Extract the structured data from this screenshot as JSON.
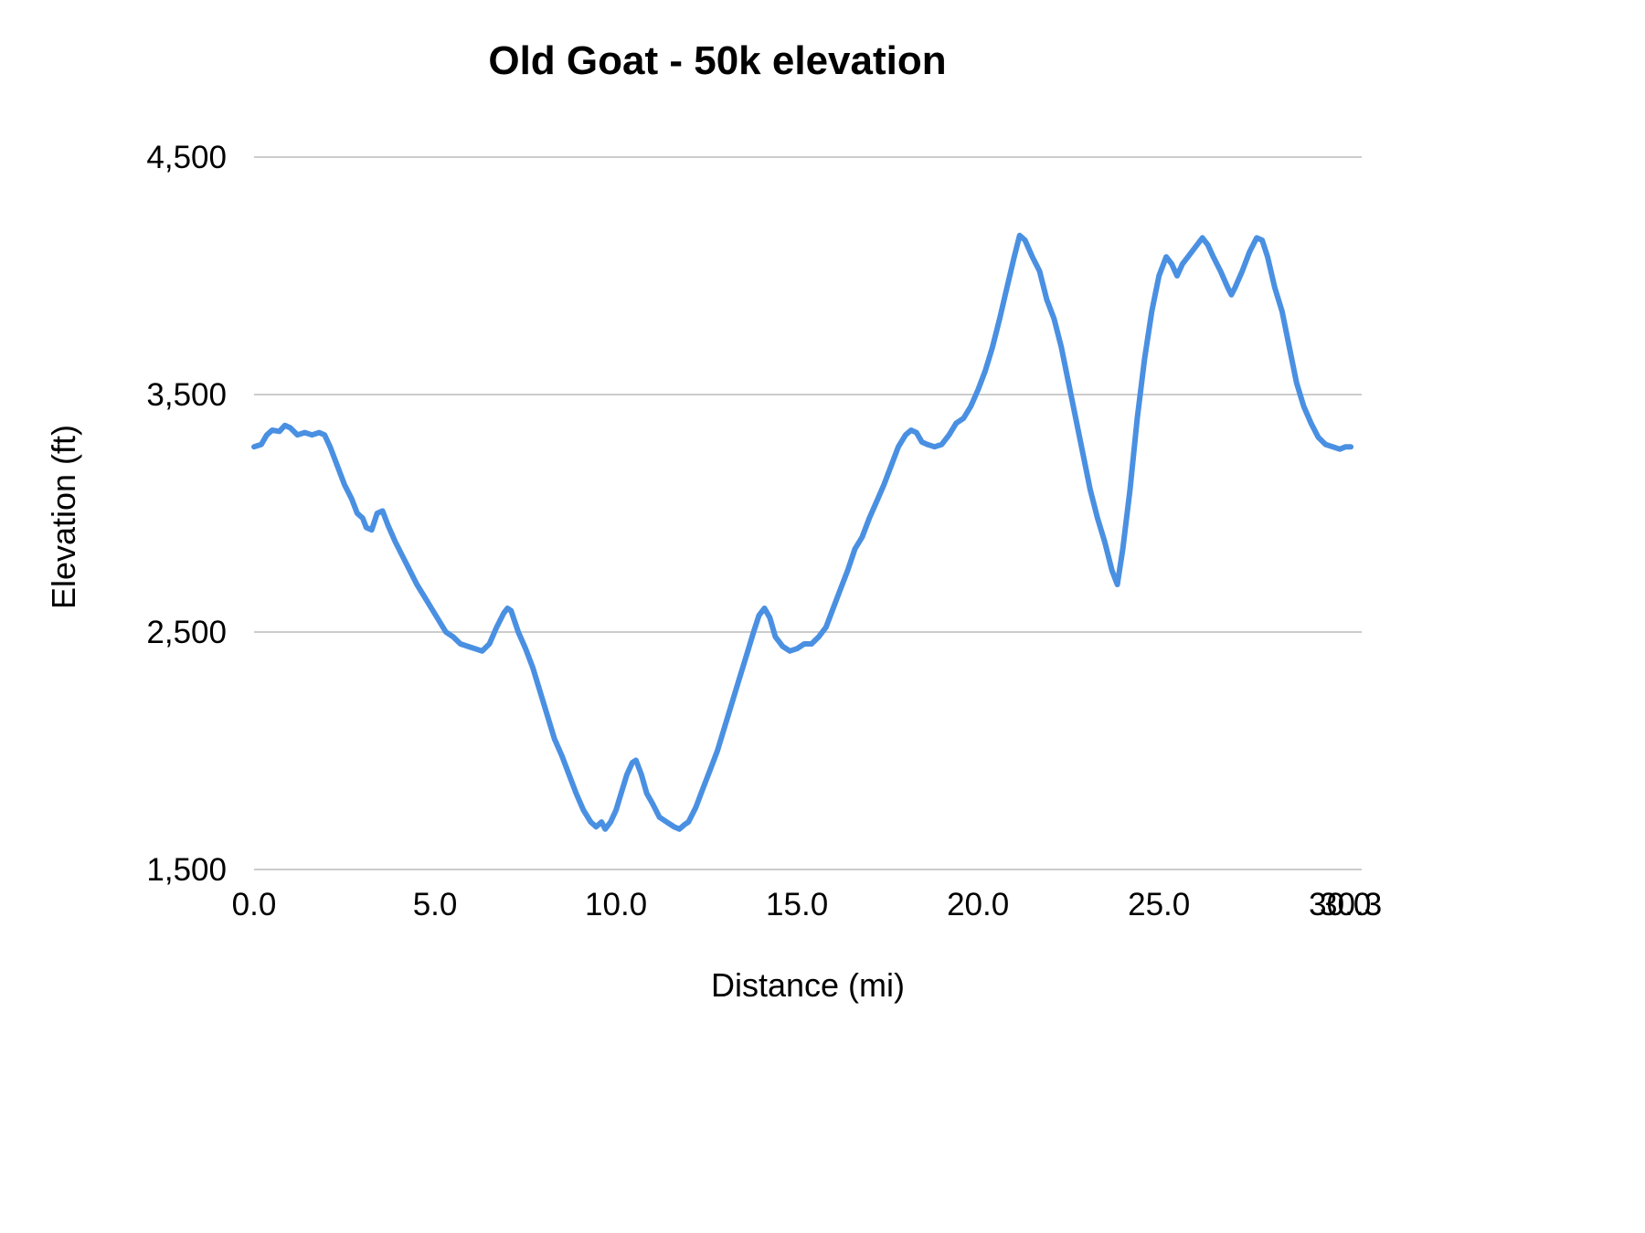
{
  "title": "Old Goat - 50k elevation",
  "chart_data": {
    "type": "line",
    "title": "Old Goat - 50k elevation",
    "xlabel": "Distance (mi)",
    "ylabel": "Elevation (ft)",
    "xlim": [
      0,
      30.6
    ],
    "ylim": [
      1500,
      4500
    ],
    "grid": "horizontal-only",
    "legend": "none",
    "line_color": "#4a90e2",
    "grid_color": "#cccccc",
    "x_ticks": [
      {
        "v": 0,
        "label": "0.0"
      },
      {
        "v": 5,
        "label": "5.0"
      },
      {
        "v": 10,
        "label": "10.0"
      },
      {
        "v": 15,
        "label": "15.0"
      },
      {
        "v": 20,
        "label": "20.0"
      },
      {
        "v": 25,
        "label": "25.0"
      },
      {
        "v": 30,
        "label": "30.0"
      },
      {
        "v": 30.3,
        "label": "30.3"
      }
    ],
    "y_ticks": [
      {
        "v": 1500,
        "label": "1,500"
      },
      {
        "v": 2500,
        "label": "2,500"
      },
      {
        "v": 3500,
        "label": "3,500"
      },
      {
        "v": 4500,
        "label": "4,500"
      }
    ],
    "series": [
      {
        "name": "elevation",
        "points": [
          [
            0.0,
            3280
          ],
          [
            0.2,
            3290
          ],
          [
            0.35,
            3330
          ],
          [
            0.5,
            3350
          ],
          [
            0.7,
            3345
          ],
          [
            0.85,
            3370
          ],
          [
            1.0,
            3360
          ],
          [
            1.2,
            3330
          ],
          [
            1.4,
            3340
          ],
          [
            1.6,
            3330
          ],
          [
            1.8,
            3340
          ],
          [
            1.95,
            3330
          ],
          [
            2.1,
            3280
          ],
          [
            2.3,
            3200
          ],
          [
            2.5,
            3120
          ],
          [
            2.7,
            3060
          ],
          [
            2.85,
            3000
          ],
          [
            3.0,
            2980
          ],
          [
            3.1,
            2940
          ],
          [
            3.25,
            2930
          ],
          [
            3.4,
            3000
          ],
          [
            3.55,
            3010
          ],
          [
            3.7,
            2950
          ],
          [
            3.9,
            2880
          ],
          [
            4.1,
            2820
          ],
          [
            4.3,
            2760
          ],
          [
            4.5,
            2700
          ],
          [
            4.7,
            2650
          ],
          [
            4.9,
            2600
          ],
          [
            5.1,
            2550
          ],
          [
            5.3,
            2500
          ],
          [
            5.5,
            2480
          ],
          [
            5.7,
            2450
          ],
          [
            5.9,
            2440
          ],
          [
            6.1,
            2430
          ],
          [
            6.3,
            2420
          ],
          [
            6.5,
            2450
          ],
          [
            6.7,
            2520
          ],
          [
            6.9,
            2580
          ],
          [
            7.0,
            2600
          ],
          [
            7.1,
            2590
          ],
          [
            7.3,
            2500
          ],
          [
            7.5,
            2430
          ],
          [
            7.7,
            2350
          ],
          [
            7.9,
            2250
          ],
          [
            8.1,
            2150
          ],
          [
            8.3,
            2050
          ],
          [
            8.5,
            1980
          ],
          [
            8.7,
            1900
          ],
          [
            8.9,
            1820
          ],
          [
            9.1,
            1750
          ],
          [
            9.3,
            1700
          ],
          [
            9.45,
            1680
          ],
          [
            9.6,
            1700
          ],
          [
            9.7,
            1670
          ],
          [
            9.85,
            1700
          ],
          [
            10.0,
            1750
          ],
          [
            10.1,
            1800
          ],
          [
            10.3,
            1900
          ],
          [
            10.45,
            1950
          ],
          [
            10.55,
            1960
          ],
          [
            10.7,
            1900
          ],
          [
            10.85,
            1820
          ],
          [
            11.0,
            1780
          ],
          [
            11.2,
            1720
          ],
          [
            11.4,
            1700
          ],
          [
            11.6,
            1680
          ],
          [
            11.75,
            1670
          ],
          [
            11.9,
            1690
          ],
          [
            12.0,
            1700
          ],
          [
            12.2,
            1760
          ],
          [
            12.4,
            1840
          ],
          [
            12.6,
            1920
          ],
          [
            12.8,
            2000
          ],
          [
            13.0,
            2100
          ],
          [
            13.2,
            2200
          ],
          [
            13.4,
            2300
          ],
          [
            13.6,
            2400
          ],
          [
            13.8,
            2500
          ],
          [
            13.95,
            2570
          ],
          [
            14.1,
            2600
          ],
          [
            14.25,
            2560
          ],
          [
            14.4,
            2480
          ],
          [
            14.6,
            2440
          ],
          [
            14.8,
            2420
          ],
          [
            15.0,
            2430
          ],
          [
            15.2,
            2450
          ],
          [
            15.4,
            2450
          ],
          [
            15.6,
            2480
          ],
          [
            15.8,
            2520
          ],
          [
            16.0,
            2600
          ],
          [
            16.2,
            2680
          ],
          [
            16.4,
            2760
          ],
          [
            16.6,
            2850
          ],
          [
            16.8,
            2900
          ],
          [
            17.0,
            2980
          ],
          [
            17.2,
            3050
          ],
          [
            17.4,
            3120
          ],
          [
            17.6,
            3200
          ],
          [
            17.8,
            3280
          ],
          [
            18.0,
            3330
          ],
          [
            18.15,
            3350
          ],
          [
            18.3,
            3340
          ],
          [
            18.45,
            3300
          ],
          [
            18.6,
            3290
          ],
          [
            18.8,
            3280
          ],
          [
            19.0,
            3290
          ],
          [
            19.2,
            3330
          ],
          [
            19.4,
            3380
          ],
          [
            19.6,
            3400
          ],
          [
            19.8,
            3450
          ],
          [
            20.0,
            3520
          ],
          [
            20.2,
            3600
          ],
          [
            20.4,
            3700
          ],
          [
            20.6,
            3820
          ],
          [
            20.8,
            3950
          ],
          [
            21.0,
            4080
          ],
          [
            21.15,
            4170
          ],
          [
            21.3,
            4150
          ],
          [
            21.5,
            4080
          ],
          [
            21.7,
            4020
          ],
          [
            21.9,
            3900
          ],
          [
            22.1,
            3820
          ],
          [
            22.3,
            3700
          ],
          [
            22.5,
            3550
          ],
          [
            22.7,
            3400
          ],
          [
            22.9,
            3250
          ],
          [
            23.1,
            3100
          ],
          [
            23.3,
            2980
          ],
          [
            23.5,
            2880
          ],
          [
            23.7,
            2760
          ],
          [
            23.85,
            2700
          ],
          [
            24.0,
            2850
          ],
          [
            24.2,
            3100
          ],
          [
            24.4,
            3400
          ],
          [
            24.6,
            3650
          ],
          [
            24.8,
            3850
          ],
          [
            25.0,
            4000
          ],
          [
            25.2,
            4080
          ],
          [
            25.35,
            4050
          ],
          [
            25.5,
            4000
          ],
          [
            25.65,
            4050
          ],
          [
            25.8,
            4080
          ],
          [
            26.0,
            4120
          ],
          [
            26.2,
            4160
          ],
          [
            26.35,
            4130
          ],
          [
            26.5,
            4080
          ],
          [
            26.7,
            4020
          ],
          [
            26.9,
            3950
          ],
          [
            27.0,
            3920
          ],
          [
            27.1,
            3950
          ],
          [
            27.3,
            4020
          ],
          [
            27.5,
            4100
          ],
          [
            27.7,
            4160
          ],
          [
            27.85,
            4150
          ],
          [
            28.0,
            4080
          ],
          [
            28.2,
            3950
          ],
          [
            28.4,
            3850
          ],
          [
            28.6,
            3700
          ],
          [
            28.8,
            3550
          ],
          [
            29.0,
            3450
          ],
          [
            29.2,
            3380
          ],
          [
            29.4,
            3320
          ],
          [
            29.6,
            3290
          ],
          [
            29.8,
            3280
          ],
          [
            30.0,
            3270
          ],
          [
            30.15,
            3280
          ],
          [
            30.3,
            3280
          ]
        ]
      }
    ]
  }
}
